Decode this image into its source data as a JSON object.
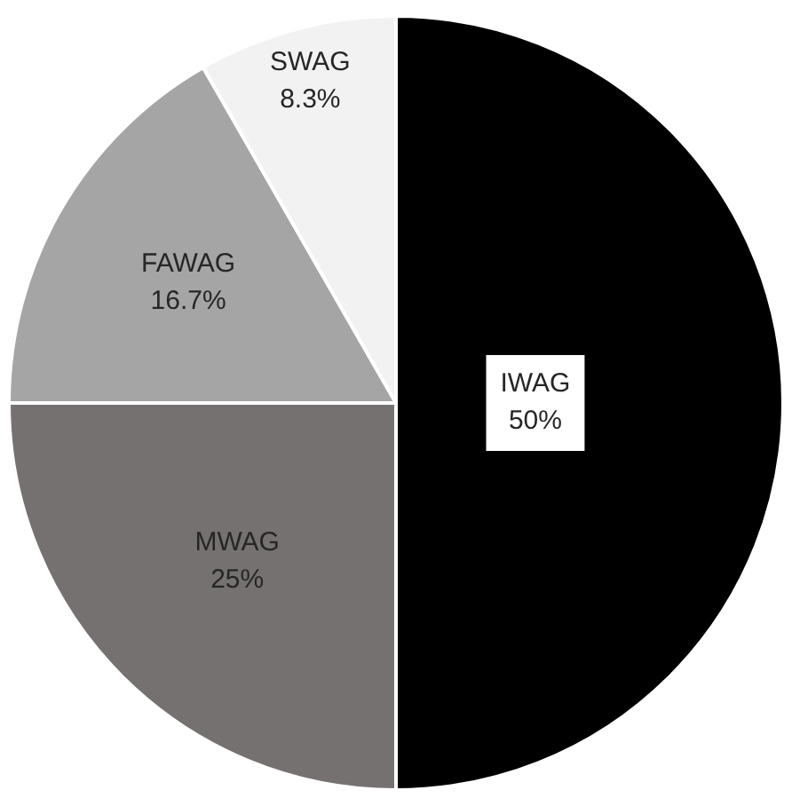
{
  "chart_data": {
    "type": "pie",
    "categories": [
      "IWAG",
      "MWAG",
      "FAWAG",
      "SWAG"
    ],
    "values": [
      50,
      25,
      16.7,
      8.3
    ],
    "value_labels": [
      "50%",
      "25%",
      "16.7%",
      "8.3%"
    ],
    "colors": [
      "#000000",
      "#767171",
      "#a5a5a5",
      "#f2f2f2"
    ],
    "legend": false
  }
}
